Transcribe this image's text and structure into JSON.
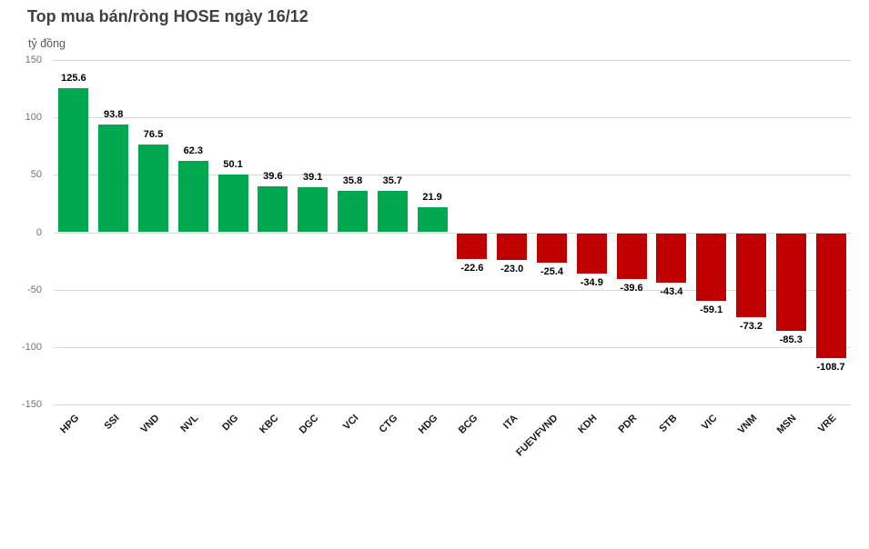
{
  "header": {
    "title": "Top mua bán/ròng HOSE ngày 16/12",
    "unit_label": "tỷ đồng"
  },
  "chart_data": {
    "type": "bar",
    "title": "Top mua bán/ròng HOSE ngày 16/12",
    "ylabel": "tỷ đồng",
    "xlabel": "",
    "ylim": [
      -150,
      150
    ],
    "yticks": [
      150,
      100,
      50,
      0,
      -50,
      -100,
      -150
    ],
    "grid": true,
    "legend": "none",
    "categories": [
      "HPG",
      "SSI",
      "VND",
      "NVL",
      "DIG",
      "KBC",
      "DGC",
      "VCI",
      "CTG",
      "HDG",
      "BCG",
      "ITA",
      "FUEVFVND",
      "KDH",
      "PDR",
      "STB",
      "VIC",
      "VNM",
      "MSN",
      "VRE"
    ],
    "values": [
      125.6,
      93.8,
      76.5,
      62.3,
      50.1,
      39.6,
      39.1,
      35.8,
      35.7,
      21.9,
      -22.6,
      -23.0,
      -25.4,
      -34.9,
      -39.6,
      -43.4,
      -59.1,
      -73.2,
      -85.3,
      -108.7
    ],
    "labels": [
      "125.6",
      "93.8",
      "76.5",
      "62.3",
      "50.1",
      "39.6",
      "39.1",
      "35.8",
      "35.7",
      "21.9",
      "-22.6",
      "-23.0",
      "-25.4",
      "-34.9",
      "-39.6",
      "-43.4",
      "-59.1",
      "-73.2",
      "-85.3",
      "-108.7"
    ],
    "colors": {
      "positive": "#00A950",
      "negative": "#C00000",
      "grid": "#D9D9D9",
      "axis_text": "#737373",
      "title_text": "#404040",
      "unit_text": "#595959",
      "value_label": "#000000",
      "category_label": "#1A1A1A",
      "background": "#FFFFFF"
    }
  }
}
